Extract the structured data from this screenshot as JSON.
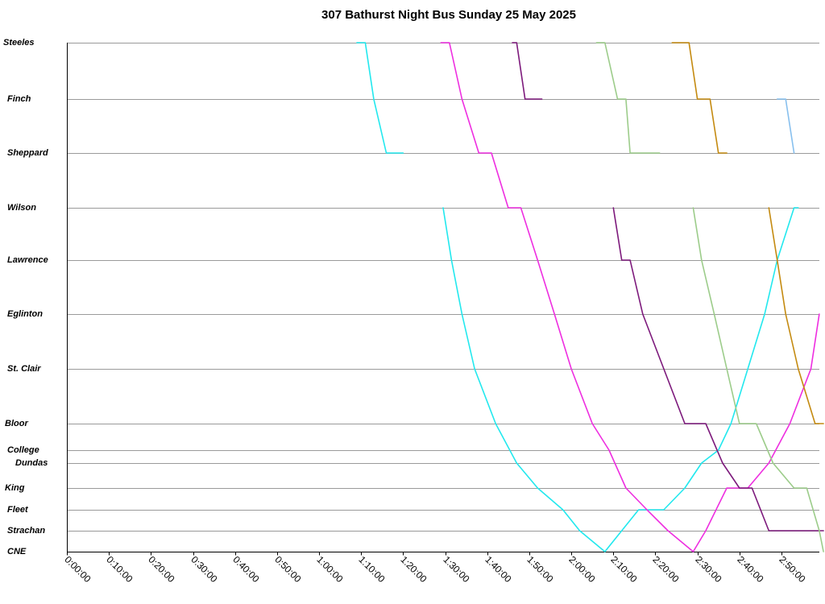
{
  "chart_data": {
    "type": "line",
    "title": "307 Bathurst Night Bus Sunday 25 May 2025",
    "x_axis": {
      "unit": "time of day",
      "range": [
        "0:00:00",
        "3:00:00"
      ],
      "tick_labels": [
        "0:00:00",
        "0:10:00",
        "0:20:00",
        "0:30:00",
        "0:40:00",
        "0:50:00",
        "1:00:00",
        "1:10:00",
        "1:20:00",
        "1:30:00",
        "1:40:00",
        "1:50:00",
        "2:00:00",
        "2:10:00",
        "2:20:00",
        "2:30:00",
        "2:40:00",
        "2:50:00"
      ]
    },
    "y_axis": {
      "type": "category",
      "stops": [
        {
          "name": "Steeles",
          "label": "Steeles"
        },
        {
          "name": "Finch",
          "label": "Finch"
        },
        {
          "name": "Sheppard",
          "label": "Sheppard"
        },
        {
          "name": "Wilson",
          "label": "Wilson"
        },
        {
          "name": "Lawrence",
          "label": "Lawrence"
        },
        {
          "name": "Eglinton",
          "label": "Eglinton"
        },
        {
          "name": "St. Clair",
          "label": "St. Clair"
        },
        {
          "name": "Bloor",
          "label": "Bloor"
        },
        {
          "name": "College",
          "label": "College"
        },
        {
          "name": "Dundas",
          "label": "Dundas"
        },
        {
          "name": "King",
          "label": "King"
        },
        {
          "name": "Fleet",
          "label": "Fleet"
        },
        {
          "name": "Strachan",
          "label": "Strachan"
        },
        {
          "name": "CNE",
          "label": "CNE"
        }
      ]
    },
    "grid": "horizontal gridlines at each stop",
    "legend": "none",
    "series": [
      {
        "color": "#22e8ee",
        "points": [
          [
            "1:09:00",
            "Steeles"
          ],
          [
            "1:11:00",
            "Steeles"
          ],
          [
            "1:13:00",
            "Finch"
          ],
          [
            "1:16:00",
            "Sheppard"
          ],
          [
            "1:19:00",
            "Sheppard"
          ],
          [
            "1:20:00",
            "Sheppard"
          ]
        ]
      },
      {
        "color": "#22e8ee",
        "points": [
          [
            "1:29:30",
            "Wilson"
          ],
          [
            "1:31:30",
            "Lawrence"
          ],
          [
            "1:34:00",
            "Eglinton"
          ],
          [
            "1:37:00",
            "St. Clair"
          ],
          [
            "1:42:00",
            "Bloor"
          ],
          [
            "1:47:00",
            "Dundas"
          ],
          [
            "1:52:00",
            "King"
          ],
          [
            "1:58:00",
            "Fleet"
          ],
          [
            "2:02:00",
            "Strachan"
          ],
          [
            "2:08:00",
            "CNE"
          ],
          [
            "2:12:00",
            "Strachan"
          ],
          [
            "2:16:00",
            "Fleet"
          ],
          [
            "2:22:00",
            "Fleet"
          ],
          [
            "2:27:00",
            "King"
          ],
          [
            "2:31:00",
            "Dundas"
          ],
          [
            "2:35:00",
            "College"
          ],
          [
            "2:38:00",
            "Bloor"
          ],
          [
            "2:42:00",
            "St. Clair"
          ],
          [
            "2:46:00",
            "Eglinton"
          ],
          [
            "2:49:00",
            "Lawrence"
          ],
          [
            "2:53:00",
            "Wilson"
          ],
          [
            "2:54:00",
            "Wilson"
          ]
        ]
      },
      {
        "color": "#ee2ee0",
        "points": [
          [
            "1:29:00",
            "Steeles"
          ],
          [
            "1:31:00",
            "Steeles"
          ],
          [
            "1:34:00",
            "Finch"
          ],
          [
            "1:38:00",
            "Sheppard"
          ],
          [
            "1:41:00",
            "Sheppard"
          ],
          [
            "1:45:00",
            "Wilson"
          ],
          [
            "1:48:00",
            "Wilson"
          ],
          [
            "1:52:00",
            "Lawrence"
          ],
          [
            "1:56:00",
            "Eglinton"
          ],
          [
            "2:00:00",
            "St. Clair"
          ],
          [
            "2:05:00",
            "Bloor"
          ],
          [
            "2:09:00",
            "College"
          ],
          [
            "2:13:00",
            "King"
          ],
          [
            "2:18:00",
            "Fleet"
          ],
          [
            "2:23:00",
            "Strachan"
          ],
          [
            "2:29:00",
            "CNE"
          ],
          [
            "2:32:00",
            "Strachan"
          ],
          [
            "2:37:00",
            "King"
          ],
          [
            "2:42:00",
            "King"
          ],
          [
            "2:47:00",
            "Dundas"
          ],
          [
            "2:52:00",
            "Bloor"
          ],
          [
            "2:57:00",
            "St. Clair"
          ],
          [
            "2:59:00",
            "Eglinton"
          ]
        ]
      },
      {
        "color": "#7d1a7c",
        "points": [
          [
            "1:46:00",
            "Steeles"
          ],
          [
            "1:47:00",
            "Steeles"
          ],
          [
            "1:49:00",
            "Finch"
          ],
          [
            "1:51:00",
            "Finch"
          ],
          [
            "1:53:00",
            "Finch"
          ]
        ]
      },
      {
        "color": "#7d1a7c",
        "points": [
          [
            "2:10:00",
            "Wilson"
          ],
          [
            "2:12:00",
            "Lawrence"
          ],
          [
            "2:14:00",
            "Lawrence"
          ],
          [
            "2:17:00",
            "Eglinton"
          ],
          [
            "2:22:00",
            "St. Clair"
          ],
          [
            "2:27:00",
            "Bloor"
          ],
          [
            "2:32:00",
            "Bloor"
          ],
          [
            "2:36:00",
            "Dundas"
          ],
          [
            "2:40:00",
            "King"
          ],
          [
            "2:43:00",
            "King"
          ],
          [
            "2:47:00",
            "Strachan"
          ],
          [
            "2:52:00",
            "Strachan"
          ],
          [
            "2:58:00",
            "Strachan"
          ],
          [
            "3:00:00",
            "Strachan"
          ]
        ]
      },
      {
        "color": "#9ccc8a",
        "points": [
          [
            "2:06:00",
            "Steeles"
          ],
          [
            "2:08:00",
            "Steeles"
          ],
          [
            "2:11:00",
            "Finch"
          ],
          [
            "2:13:00",
            "Finch"
          ],
          [
            "2:14:00",
            "Sheppard"
          ],
          [
            "2:19:00",
            "Sheppard"
          ],
          [
            "2:21:00",
            "Sheppard"
          ]
        ]
      },
      {
        "color": "#9ccc8a",
        "points": [
          [
            "2:29:00",
            "Wilson"
          ],
          [
            "2:31:00",
            "Lawrence"
          ],
          [
            "2:34:00",
            "Eglinton"
          ],
          [
            "2:37:00",
            "St. Clair"
          ],
          [
            "2:40:00",
            "Bloor"
          ],
          [
            "2:44:00",
            "Bloor"
          ],
          [
            "2:48:00",
            "Dundas"
          ],
          [
            "2:53:00",
            "King"
          ],
          [
            "2:56:00",
            "King"
          ],
          [
            "2:59:00",
            "Strachan"
          ],
          [
            "3:00:00",
            "CNE"
          ]
        ]
      },
      {
        "color": "#c48a10",
        "points": [
          [
            "2:24:00",
            "Steeles"
          ],
          [
            "2:28:00",
            "Steeles"
          ],
          [
            "2:30:00",
            "Finch"
          ],
          [
            "2:33:00",
            "Finch"
          ],
          [
            "2:35:00",
            "Sheppard"
          ],
          [
            "2:37:00",
            "Sheppard"
          ]
        ]
      },
      {
        "color": "#c48a10",
        "points": [
          [
            "2:47:00",
            "Wilson"
          ],
          [
            "2:49:00",
            "Lawrence"
          ],
          [
            "2:51:00",
            "Eglinton"
          ],
          [
            "2:54:00",
            "St. Clair"
          ],
          [
            "2:58:00",
            "Bloor"
          ],
          [
            "3:00:00",
            "Bloor"
          ]
        ]
      },
      {
        "color": "#88c0ee",
        "points": [
          [
            "2:49:00",
            "Finch"
          ],
          [
            "2:51:00",
            "Finch"
          ],
          [
            "2:53:00",
            "Sheppard"
          ]
        ]
      }
    ]
  }
}
